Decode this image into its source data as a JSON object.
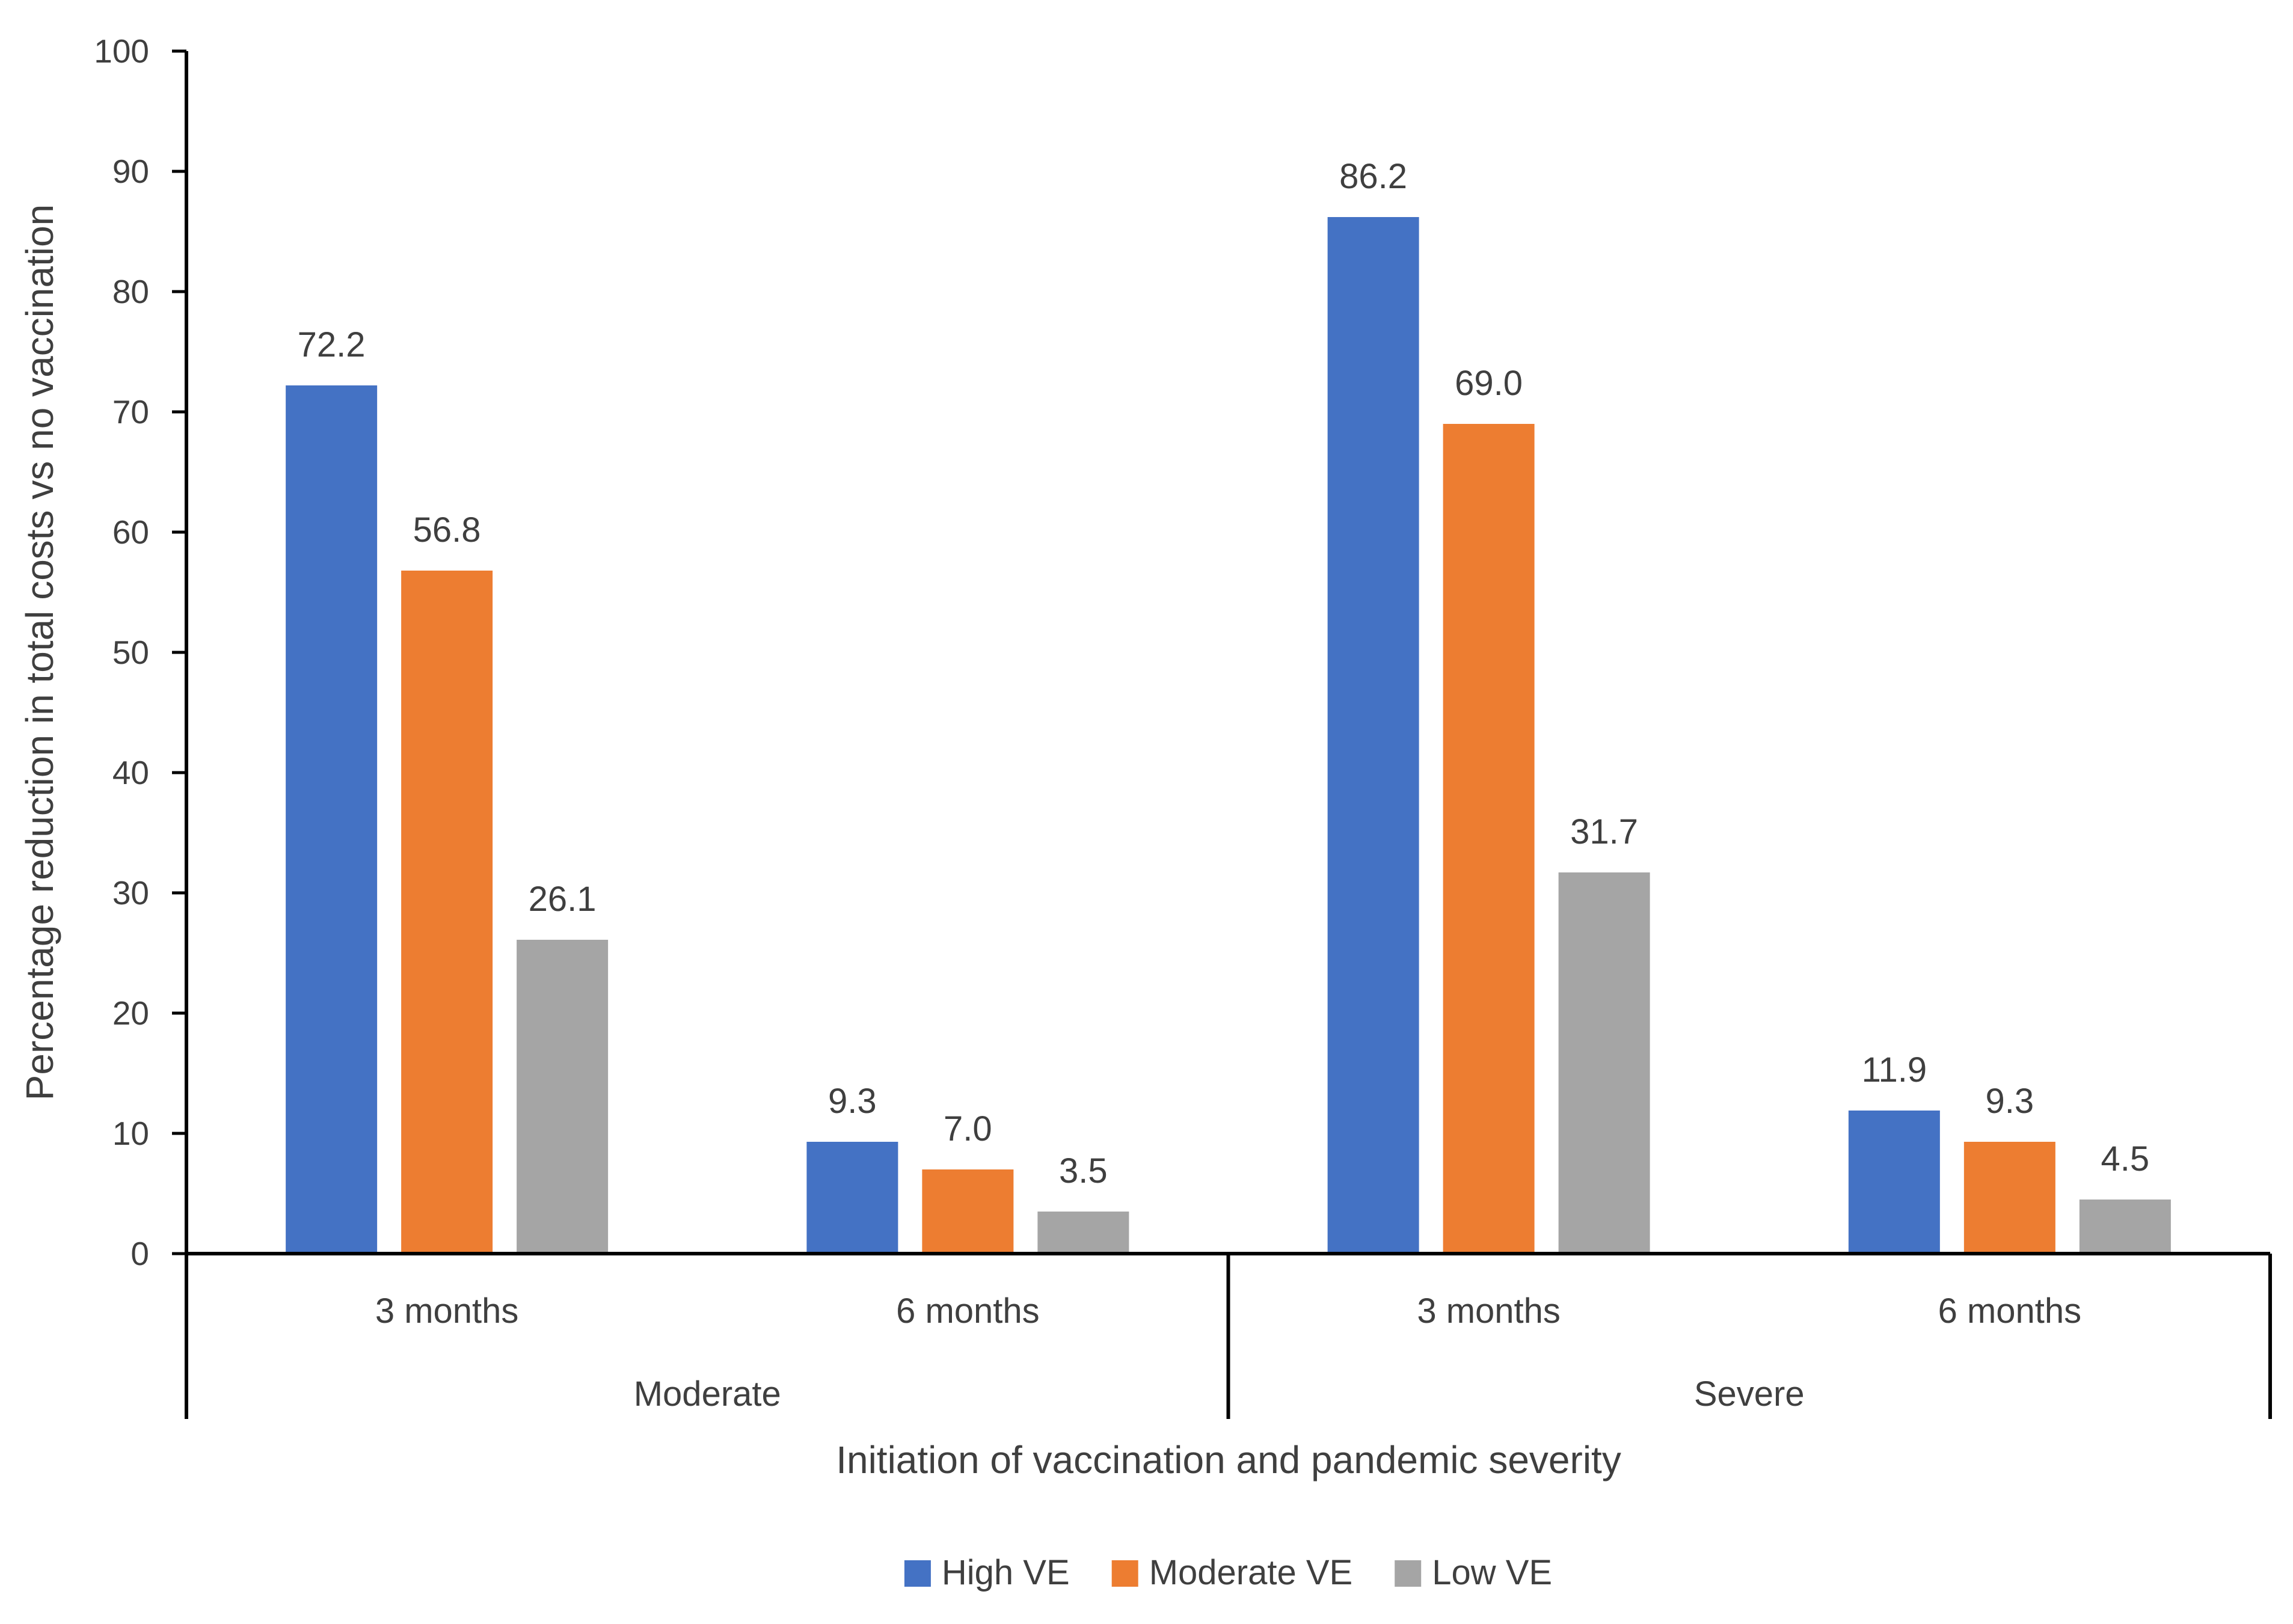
{
  "chart_data": {
    "type": "bar",
    "title": "",
    "xlabel": "Initiation of vaccination and pandemic severity",
    "ylabel": "Percentage reduction in total costs vs no vaccination",
    "ylim": [
      0,
      100
    ],
    "yticks": [
      0,
      10,
      20,
      30,
      40,
      50,
      60,
      70,
      80,
      90,
      100
    ],
    "grid": false,
    "legend_position": "bottom",
    "groups": [
      {
        "label": "Moderate",
        "categories": [
          "3 months",
          "6 months"
        ]
      },
      {
        "label": "Severe",
        "categories": [
          "3 months",
          "6 months"
        ]
      }
    ],
    "categories": [
      "3 months",
      "6 months",
      "3 months",
      "6 months"
    ],
    "series": [
      {
        "name": "High VE",
        "color": "#4472c4",
        "values": [
          72.2,
          9.3,
          86.2,
          11.9
        ],
        "labels": [
          "72.2",
          "9.3",
          "86.2",
          "11.9"
        ]
      },
      {
        "name": "Moderate VE",
        "color": "#ed7d31",
        "values": [
          56.8,
          7.0,
          69.0,
          9.3
        ],
        "labels": [
          "56.8",
          "7.0",
          "69.0",
          "9.3"
        ]
      },
      {
        "name": "Low VE",
        "color": "#a5a5a5",
        "values": [
          26.1,
          3.5,
          31.7,
          4.5
        ],
        "labels": [
          "26.1",
          "3.5",
          "31.7",
          "4.5"
        ]
      }
    ]
  }
}
